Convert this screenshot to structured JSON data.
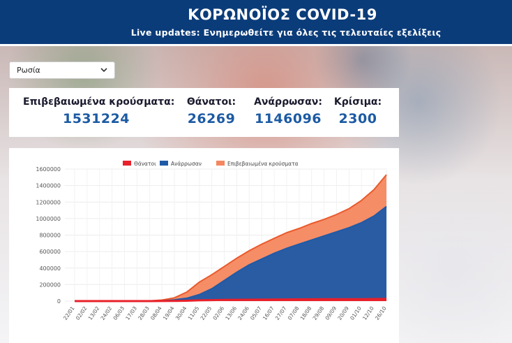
{
  "header": {
    "title": "ΚΟΡΩΝΟΪΟΣ COVID-19",
    "subtitle": "Live updates: Ενημερωθείτε για όλες τις τελευταίες εξελίξεις"
  },
  "country_select": {
    "selected": "Ρωσία"
  },
  "stats": {
    "confirmed_label": "Επιβεβαιωμένα κρούσματα:",
    "confirmed_value": "1531224",
    "deaths_label": "Θάνατοι:",
    "deaths_value": "26269",
    "recovered_label": "Ανάρρωσαν:",
    "recovered_value": "1146096",
    "critical_label": "Κρίσιμα:",
    "critical_value": "2300"
  },
  "colors": {
    "header_bg": "#0b3c7a",
    "deaths": "#e8202a",
    "recovered": "#1f5aa6",
    "confirmed": "#f4875f",
    "confirmed_line": "#ea5a2b"
  },
  "chart_data": {
    "type": "area",
    "title": "",
    "xlabel": "",
    "ylabel": "",
    "ylim": [
      0,
      1600000
    ],
    "yticks": [
      0,
      200000,
      400000,
      600000,
      800000,
      1000000,
      1200000,
      1400000,
      1600000
    ],
    "categories": [
      "22/01",
      "02/02",
      "13/02",
      "24/02",
      "06/03",
      "17/03",
      "28/03",
      "08/04",
      "19/04",
      "30/04",
      "11/05",
      "22/05",
      "02/06",
      "13/06",
      "24/06",
      "05/07",
      "16/07",
      "27/07",
      "07/08",
      "18/08",
      "29/08",
      "09/09",
      "20/09",
      "01/10",
      "12/10",
      "26/10"
    ],
    "legend_position": "top-center",
    "series": [
      {
        "name": "Θάνατοι",
        "color": "#e8202a",
        "values": [
          0,
          0,
          0,
          0,
          0,
          0,
          300,
          1000,
          1700,
          4000,
          9000,
          12000,
          14000,
          16000,
          17000,
          18000,
          19000,
          20000,
          21000,
          22000,
          22500,
          23000,
          23500,
          24000,
          25000,
          26269
        ]
      },
      {
        "name": "Ανάρρωσαν",
        "color": "#1f5aa6",
        "values": [
          0,
          0,
          0,
          0,
          0,
          0,
          500,
          3000,
          15000,
          35000,
          80000,
          150000,
          250000,
          350000,
          440000,
          510000,
          580000,
          640000,
          690000,
          740000,
          790000,
          840000,
          890000,
          950000,
          1030000,
          1146096
        ]
      },
      {
        "name": "Επιβεβαιωμένα κρούσματα",
        "color": "#f4875f",
        "values": [
          0,
          2,
          2,
          2,
          4,
          100,
          1500,
          13000,
          40000,
          110000,
          230000,
          320000,
          420000,
          520000,
          610000,
          690000,
          760000,
          830000,
          880000,
          940000,
          990000,
          1050000,
          1120000,
          1220000,
          1350000,
          1531224
        ]
      }
    ]
  }
}
